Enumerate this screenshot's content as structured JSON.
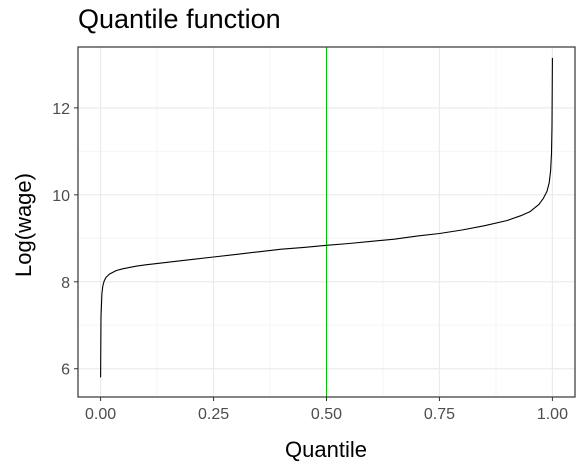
{
  "chart_data": {
    "type": "line",
    "title": "Quantile function",
    "xlabel": "Quantile",
    "ylabel": "Log(wage)",
    "xlim": [
      -0.05,
      1.05
    ],
    "ylim": [
      5.35,
      13.4
    ],
    "x_ticks": [
      "0.00",
      "0.25",
      "0.50",
      "0.75",
      "1.00"
    ],
    "x_tick_values": [
      0,
      0.25,
      0.5,
      0.75,
      1
    ],
    "y_ticks": [
      "6",
      "8",
      "10",
      "12"
    ],
    "y_tick_values": [
      6,
      8,
      10,
      12
    ],
    "grid": true,
    "series": [
      {
        "x": [
          0.0,
          0.001,
          0.003,
          0.005,
          0.008,
          0.012,
          0.02,
          0.035,
          0.05,
          0.08,
          0.1,
          0.15,
          0.2,
          0.25,
          0.3,
          0.35,
          0.4,
          0.45,
          0.5,
          0.55,
          0.6,
          0.65,
          0.7,
          0.75,
          0.8,
          0.85,
          0.9,
          0.93,
          0.95,
          0.97,
          0.98,
          0.988,
          0.993,
          0.996,
          0.998,
          0.999,
          1.0
        ],
        "y": [
          5.8,
          7.2,
          7.72,
          7.9,
          8.02,
          8.1,
          8.18,
          8.26,
          8.3,
          8.36,
          8.39,
          8.45,
          8.51,
          8.57,
          8.63,
          8.69,
          8.75,
          8.79,
          8.84,
          8.88,
          8.93,
          8.98,
          9.05,
          9.11,
          9.19,
          9.29,
          9.41,
          9.52,
          9.61,
          9.78,
          9.92,
          10.08,
          10.28,
          10.55,
          10.95,
          11.6,
          13.15
        ],
        "color": "#000000"
      }
    ],
    "vline": {
      "x": 0.5,
      "color": "#00c000"
    },
    "colors": {
      "grid_major": "#ebebeb",
      "grid_minor": "#f5f5f5",
      "panel_border": "#333333",
      "tick_label": "#4d4d4d"
    }
  }
}
